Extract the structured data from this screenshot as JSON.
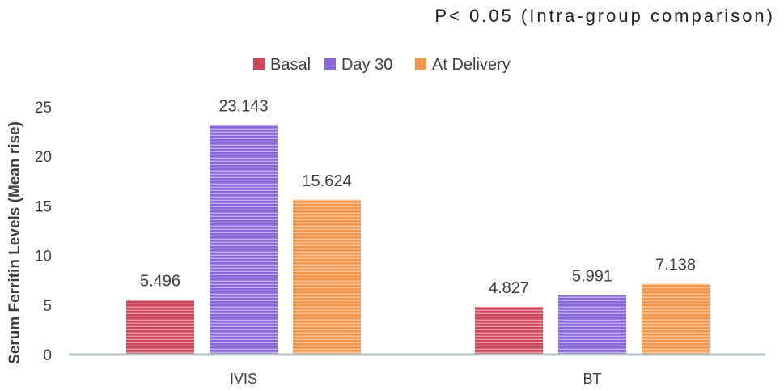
{
  "chart_data": {
    "type": "bar",
    "title": "P< 0.05 (Intra-group comparison)",
    "xlabel": "",
    "ylabel": "Serum Ferritin Levels (Mean rise)",
    "ylim": [
      0,
      25
    ],
    "yticks": [
      0,
      5,
      10,
      15,
      20,
      25
    ],
    "categories": [
      "IVIS",
      "BT"
    ],
    "series": [
      {
        "name": "Basal",
        "color": "#d0455b",
        "values": [
          5.496,
          4.827
        ],
        "labels": [
          "5.496",
          "4.827"
        ]
      },
      {
        "name": "Day 30",
        "color": "#8b67de",
        "values": [
          23.143,
          5.991
        ],
        "labels": [
          "23.143",
          "5.991"
        ]
      },
      {
        "name": "At Delivery",
        "color": "#f5974a",
        "values": [
          15.624,
          7.138
        ],
        "labels": [
          "15.624",
          "7.138"
        ]
      }
    ],
    "legend_position": "top-center",
    "grid": false
  }
}
